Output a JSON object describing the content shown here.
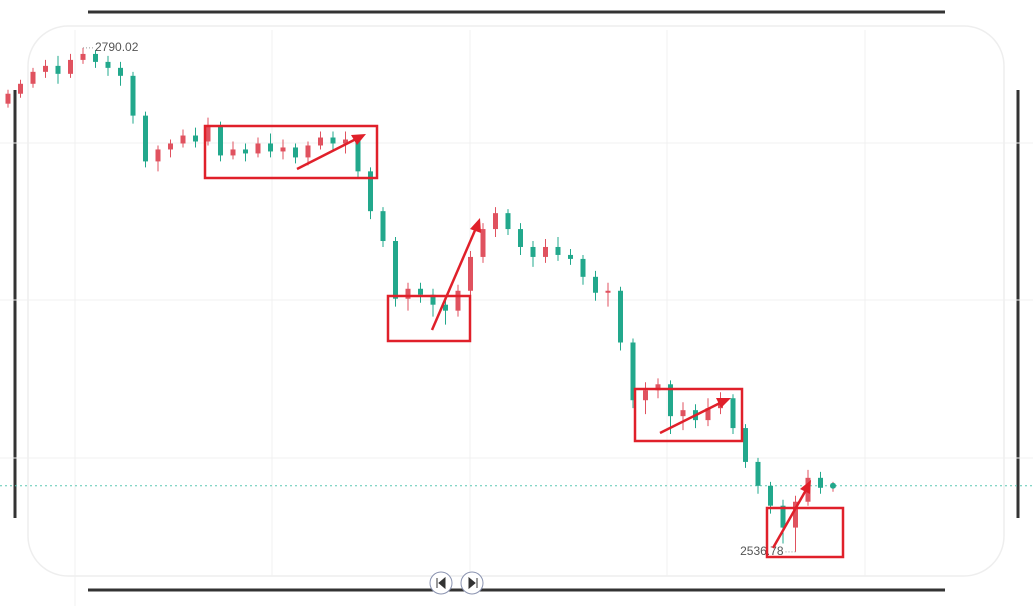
{
  "chart_data": {
    "type": "candlestick",
    "open": [
      2762,
      2767,
      2772,
      2778,
      2781,
      2777,
      2784,
      2787,
      2783,
      2780,
      2776,
      2756,
      2733,
      2739,
      2742,
      2746,
      2743,
      2751,
      2736,
      2739,
      2737,
      2742,
      2738,
      2740,
      2735,
      2741,
      2745,
      2742,
      2744,
      2728,
      2708,
      2693,
      2664,
      2669,
      2666,
      2661,
      2658,
      2668,
      2685,
      2699,
      2707,
      2699,
      2690,
      2685,
      2690,
      2686,
      2684,
      2675,
      2667,
      2668,
      2642,
      2613,
      2618,
      2621,
      2605,
      2608,
      2603,
      2609,
      2614,
      2599,
      2582,
      2570,
      2560,
      2549,
      2562,
      2574,
      2569
    ],
    "high": [
      2769,
      2774,
      2780,
      2784,
      2786,
      2787,
      2790.02,
      2789,
      2786,
      2783,
      2778,
      2758,
      2741,
      2744,
      2749,
      2750,
      2755,
      2753,
      2743,
      2742,
      2745,
      2747,
      2744,
      2742,
      2743,
      2748,
      2748,
      2748,
      2746,
      2730,
      2710,
      2695,
      2672,
      2672,
      2669,
      2664,
      2671,
      2688,
      2702,
      2710,
      2709,
      2702,
      2693,
      2694,
      2695,
      2689,
      2686,
      2678,
      2672,
      2670,
      2644,
      2622,
      2624,
      2623,
      2612,
      2611,
      2614,
      2617,
      2616,
      2601,
      2584,
      2572,
      2563,
      2565,
      2578,
      2577,
      2572
    ],
    "low": [
      2760,
      2765,
      2770,
      2775,
      2772,
      2775,
      2782,
      2780,
      2776,
      2771,
      2752,
      2730,
      2728,
      2735,
      2740,
      2740,
      2741,
      2733,
      2734,
      2733,
      2735,
      2735,
      2734,
      2732,
      2731,
      2739,
      2738,
      2737,
      2725,
      2704,
      2690,
      2660,
      2658,
      2662,
      2655,
      2651,
      2655,
      2664,
      2682,
      2695,
      2696,
      2686,
      2680,
      2682,
      2683,
      2681,
      2671,
      2663,
      2660,
      2638,
      2609,
      2606,
      2614,
      2596,
      2598,
      2599,
      2600,
      2606,
      2596,
      2579,
      2566,
      2556,
      2541,
      2536.78,
      2560,
      2566,
      2567
    ],
    "close": [
      2767,
      2772,
      2778,
      2781,
      2777,
      2784,
      2787,
      2783,
      2780,
      2776,
      2756,
      2733,
      2739,
      2742,
      2746,
      2743,
      2751,
      2736,
      2739,
      2737,
      2742,
      2738,
      2740,
      2735,
      2741,
      2745,
      2742,
      2744,
      2728,
      2708,
      2693,
      2664,
      2669,
      2666,
      2661,
      2658,
      2668,
      2685,
      2699,
      2707,
      2699,
      2690,
      2685,
      2690,
      2686,
      2684,
      2675,
      2667,
      2668,
      2642,
      2613,
      2618,
      2621,
      2605,
      2608,
      2603,
      2609,
      2614,
      2599,
      2582,
      2570,
      2560,
      2549,
      2562,
      2574,
      2569,
      2570
    ],
    "up_color": "#e0525f",
    "down_color": "#22a88c",
    "ylim": [
      2509.6,
      2814.1
    ],
    "annotations": [
      {
        "value": 2790.02,
        "label": "2790.02"
      },
      {
        "value": 2536.78,
        "label": "2536.78"
      }
    ]
  }
}
